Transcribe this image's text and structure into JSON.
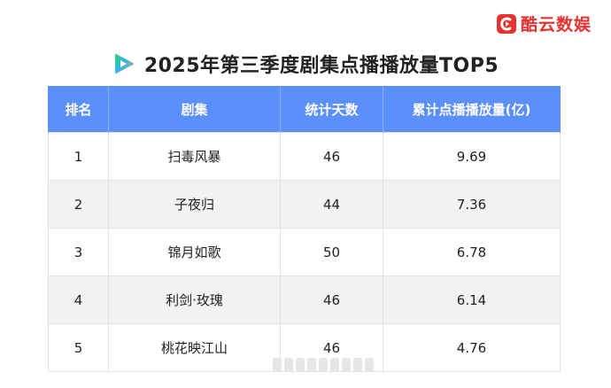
{
  "brand": {
    "name": "酷云数娱",
    "logo_icon": "kuyun-logo-icon",
    "color": "#e8322f"
  },
  "title": "2025年第三季度剧集点播播放量TOP5",
  "title_icon": "iqiyi-style-play-icon",
  "table": {
    "header_color": "#5b8ff9",
    "columns": [
      "排名",
      "剧集",
      "统计天数",
      "累计点播播放量(亿)"
    ],
    "rows": [
      [
        "1",
        "扫毒风暴",
        "46",
        "9.69"
      ],
      [
        "2",
        "子夜归",
        "44",
        "7.36"
      ],
      [
        "3",
        "锦月如歌",
        "50",
        "6.78"
      ],
      [
        "4",
        "利剑·玫瑰",
        "46",
        "6.14"
      ],
      [
        "5",
        "桃花映江山",
        "46",
        "4.76"
      ]
    ]
  }
}
